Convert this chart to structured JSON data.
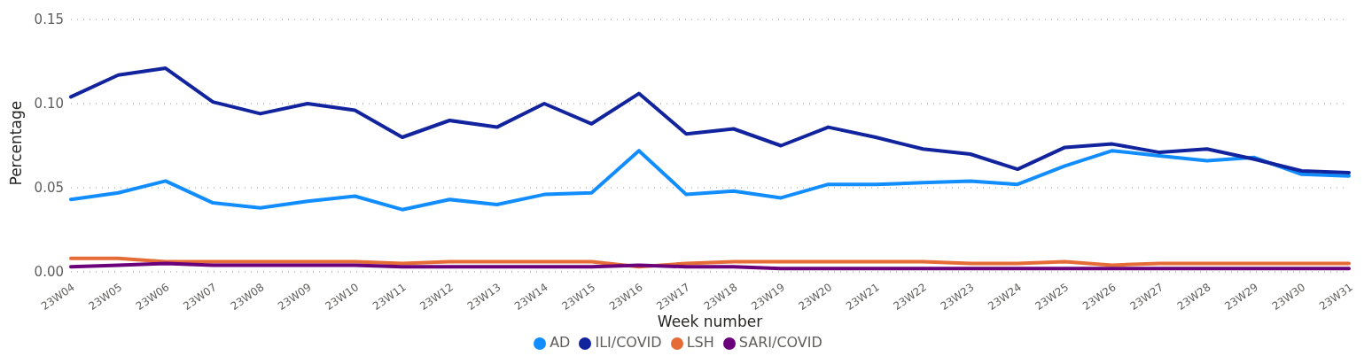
{
  "chart_data": {
    "type": "line",
    "xlabel": "Week number",
    "ylabel": "Percentage",
    "categories": [
      "23W04",
      "23W05",
      "23W06",
      "23W07",
      "23W08",
      "23W09",
      "23W10",
      "23W11",
      "23W12",
      "23W13",
      "23W14",
      "23W15",
      "23W16",
      "23W17",
      "23W18",
      "23W19",
      "23W20",
      "23W21",
      "23W22",
      "23W23",
      "23W24",
      "23W25",
      "23W26",
      "23W27",
      "23W28",
      "23W29",
      "23W30",
      "23W31"
    ],
    "series": [
      {
        "name": "AD",
        "color": "#118dff",
        "values": [
          0.043,
          0.047,
          0.054,
          0.041,
          0.038,
          0.042,
          0.045,
          0.037,
          0.043,
          0.04,
          0.046,
          0.047,
          0.072,
          0.046,
          0.048,
          0.044,
          0.052,
          0.052,
          0.053,
          0.054,
          0.052,
          0.063,
          0.072,
          0.069,
          0.066,
          0.068,
          0.058,
          0.057
        ]
      },
      {
        "name": "ILI/COVID",
        "color": "#12239e",
        "values": [
          0.104,
          0.117,
          0.121,
          0.101,
          0.094,
          0.1,
          0.096,
          0.08,
          0.09,
          0.086,
          0.1,
          0.088,
          0.106,
          0.082,
          0.085,
          0.075,
          0.086,
          0.08,
          0.073,
          0.07,
          0.061,
          0.074,
          0.076,
          0.071,
          0.073,
          0.067,
          0.06,
          0.059
        ]
      },
      {
        "name": "LSH",
        "color": "#e66c37",
        "values": [
          0.008,
          0.008,
          0.006,
          0.006,
          0.006,
          0.006,
          0.006,
          0.005,
          0.006,
          0.006,
          0.006,
          0.006,
          0.003,
          0.005,
          0.006,
          0.006,
          0.006,
          0.006,
          0.006,
          0.005,
          0.005,
          0.006,
          0.004,
          0.005,
          0.005,
          0.005,
          0.005,
          0.005
        ]
      },
      {
        "name": "SARI/COVID",
        "color": "#6b007b",
        "values": [
          0.003,
          0.004,
          0.005,
          0.004,
          0.004,
          0.004,
          0.004,
          0.003,
          0.003,
          0.003,
          0.003,
          0.003,
          0.004,
          0.003,
          0.003,
          0.002,
          0.002,
          0.002,
          0.002,
          0.002,
          0.002,
          0.002,
          0.002,
          0.002,
          0.002,
          0.002,
          0.002,
          0.002
        ]
      }
    ],
    "ylim": [
      0,
      0.15
    ],
    "yticks": [
      {
        "value": 0,
        "label": "0.00"
      },
      {
        "value": 0.05,
        "label": "0.05"
      },
      {
        "value": 0.1,
        "label": "0.10"
      },
      {
        "value": 0.15,
        "label": "0.15"
      }
    ],
    "grid": "y",
    "legend": "bottom",
    "marker": "none",
    "line_style": "solid"
  }
}
